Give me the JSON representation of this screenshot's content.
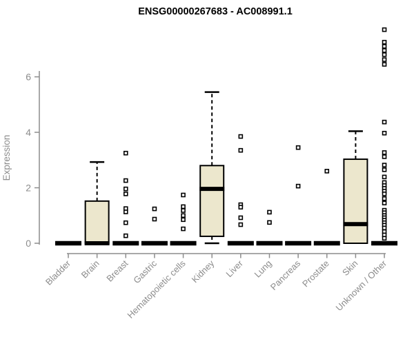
{
  "page": {
    "background": "#ffffff"
  },
  "chart_data": {
    "type": "boxplot",
    "title": "ENSG00000267683 - AC008991.1",
    "xlabel": "",
    "ylabel": "Expression",
    "yticks": [
      0,
      2,
      4,
      6
    ],
    "ylim": [
      0,
      7.9
    ],
    "grid": false,
    "legend": "none",
    "colors": {
      "box_fill": "#ece7cd",
      "box_stroke": "#000000",
      "axis": "#8c8c8c",
      "labels": "#8c8c8c",
      "title": "#000000",
      "outlier_fill": "#ffffff",
      "outlier_stroke": "#000000"
    },
    "categories": [
      "Bladder",
      "Brain",
      "Breast",
      "Gastric",
      "Hematopoietic cells",
      "Kidney",
      "Liver",
      "Lung",
      "Pancreas",
      "Prostate",
      "Skin",
      "Unknown / Other"
    ],
    "boxes": [
      {
        "category": "Bladder",
        "q1": 0,
        "median": 0,
        "q3": 0,
        "whisker_low": 0,
        "whisker_high": 0,
        "outliers": []
      },
      {
        "category": "Brain",
        "q1": 0,
        "median": 0,
        "q3": 1.52,
        "whisker_low": 0,
        "whisker_high": 2.93,
        "outliers": []
      },
      {
        "category": "Breast",
        "q1": 0,
        "median": 0,
        "q3": 0,
        "whisker_low": 0,
        "whisker_high": 0,
        "outliers": [
          3.25,
          2.26,
          1.96,
          1.78,
          1.25,
          1.13,
          0.74,
          0.27
        ]
      },
      {
        "category": "Gastric",
        "q1": 0,
        "median": 0,
        "q3": 0,
        "whisker_low": 0,
        "whisker_high": 0,
        "outliers": [
          1.24,
          0.87
        ]
      },
      {
        "category": "Hematopoietic cells",
        "q1": 0,
        "median": 0,
        "q3": 0,
        "whisker_low": 0,
        "whisker_high": 0,
        "outliers": [
          1.74,
          1.32,
          1.18,
          1.0,
          0.85,
          0.52
        ]
      },
      {
        "category": "Kidney",
        "q1": 0.25,
        "median": 1.96,
        "q3": 2.8,
        "whisker_low": 0,
        "whisker_high": 5.45,
        "outliers": []
      },
      {
        "category": "Liver",
        "q1": 0,
        "median": 0,
        "q3": 0,
        "whisker_low": 0,
        "whisker_high": 0,
        "outliers": [
          3.85,
          3.35,
          1.39,
          1.3,
          0.92,
          0.67
        ]
      },
      {
        "category": "Lung",
        "q1": 0,
        "median": 0,
        "q3": 0,
        "whisker_low": 0,
        "whisker_high": 0,
        "outliers": [
          1.12,
          0.75
        ]
      },
      {
        "category": "Pancreas",
        "q1": 0,
        "median": 0,
        "q3": 0,
        "whisker_low": 0,
        "whisker_high": 0,
        "outliers": [
          3.45,
          2.06
        ]
      },
      {
        "category": "Prostate",
        "q1": 0,
        "median": 0,
        "q3": 0,
        "whisker_low": 0,
        "whisker_high": 0,
        "outliers": [
          2.6
        ]
      },
      {
        "category": "Skin",
        "q1": 0,
        "median": 0.69,
        "q3": 3.03,
        "whisker_low": 0,
        "whisker_high": 4.04,
        "outliers": []
      },
      {
        "category": "Unknown / Other",
        "q1": 0,
        "median": 0,
        "q3": 0,
        "whisker_low": 0,
        "whisker_high": 0,
        "outliers": [
          7.7,
          7.25,
          7.1,
          6.95,
          6.8,
          6.62,
          6.45,
          4.37,
          3.97,
          3.27,
          3.12,
          2.82,
          2.65,
          2.39,
          2.19,
          2.08,
          1.98,
          1.88,
          1.78,
          1.61,
          1.45,
          1.19,
          1.1,
          1.0,
          0.92,
          0.83,
          0.74,
          0.65,
          0.55,
          0.42,
          0.3,
          0.18
        ]
      }
    ]
  }
}
